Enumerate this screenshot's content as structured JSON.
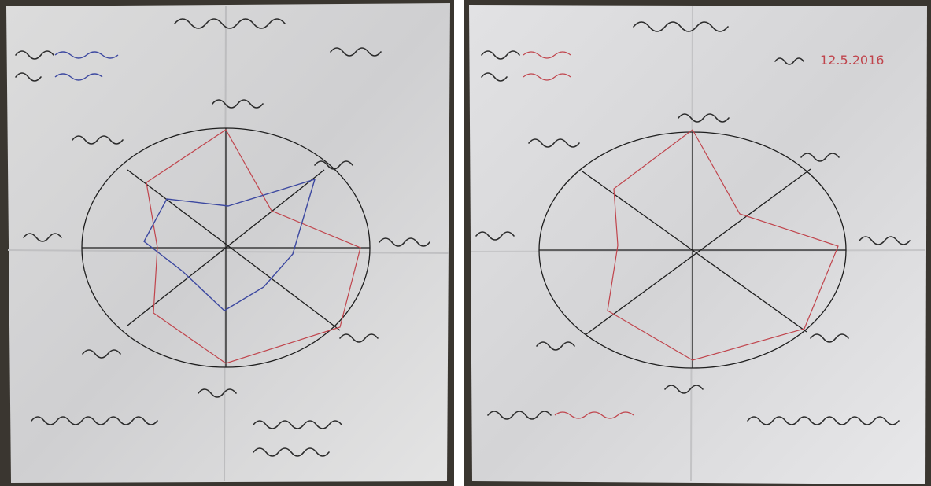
{
  "photo_right": {
    "date": "12.5.2016"
  }
}
